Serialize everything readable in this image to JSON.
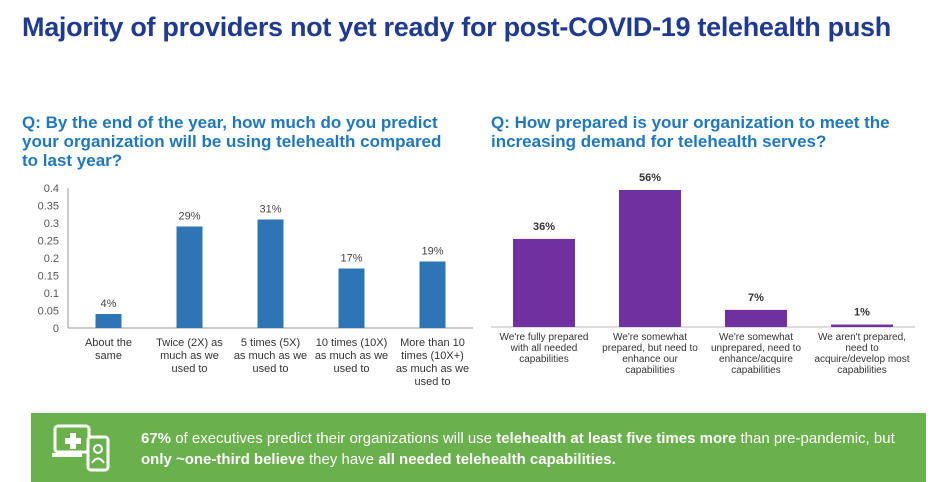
{
  "title": "Majority of providers not yet ready for post-COVID-19 telehealth push",
  "questions": {
    "left": "Q: By the end of the year, how much do you predict your organization will be using telehealth compared to last year?",
    "right": "Q: How prepared is your organization to meet the increasing demand for telehealth serves?"
  },
  "chart_data": [
    {
      "type": "bar",
      "categories": [
        [
          "About the",
          "same"
        ],
        [
          "Twice (2X) as",
          "much as we",
          "used to"
        ],
        [
          "5 times (5X)",
          "as much as we",
          "used to"
        ],
        [
          "10 times (10X)",
          "as much as we",
          "used to"
        ],
        [
          "More than 10",
          "times (10X+)",
          "as much as we",
          "used to"
        ]
      ],
      "values": [
        0.04,
        0.29,
        0.31,
        0.17,
        0.19
      ],
      "data_labels": [
        "4%",
        "29%",
        "31%",
        "17%",
        "19%"
      ],
      "ylim": [
        0,
        0.4
      ],
      "yticks": [
        "0",
        "0.05",
        "0.1",
        "0.15",
        "0.2",
        "0.25",
        "0.3",
        "0.35",
        "0.4"
      ],
      "color": "#2e75b6",
      "grid": false
    },
    {
      "type": "bar",
      "categories": [
        [
          "We're fully prepared",
          "with all needed",
          "capabilities"
        ],
        [
          "We're somewhat",
          "prepared, but need to",
          "enhance our",
          "capabilities"
        ],
        [
          "We're somewhat",
          "unprepared, need to",
          "enhance/acquire",
          "capabilities"
        ],
        [
          "We aren't prepared,",
          "need to",
          "acquire/develop most",
          "capabilities"
        ]
      ],
      "values": [
        36,
        56,
        7,
        1
      ],
      "data_labels": [
        "36%",
        "56%",
        "7%",
        "1%"
      ],
      "ylim": [
        0,
        60
      ],
      "color": "#7030a0",
      "grid": false
    }
  ],
  "banner": {
    "icon": "telehealth-device-icon",
    "bg_color": "#6ab04c",
    "text_parts": [
      {
        "t": "67%",
        "b": true
      },
      {
        "t": " of executives predict their organizations will use ",
        "b": false
      },
      {
        "t": "telehealth at least five times more",
        "b": true
      },
      {
        "t": " than pre-pandemic, but ",
        "b": false
      },
      {
        "t": "only ~one-third believe",
        "b": true
      },
      {
        "t": " they have ",
        "b": false
      },
      {
        "t": "all needed telehealth capabilities.",
        "b": true
      }
    ]
  }
}
